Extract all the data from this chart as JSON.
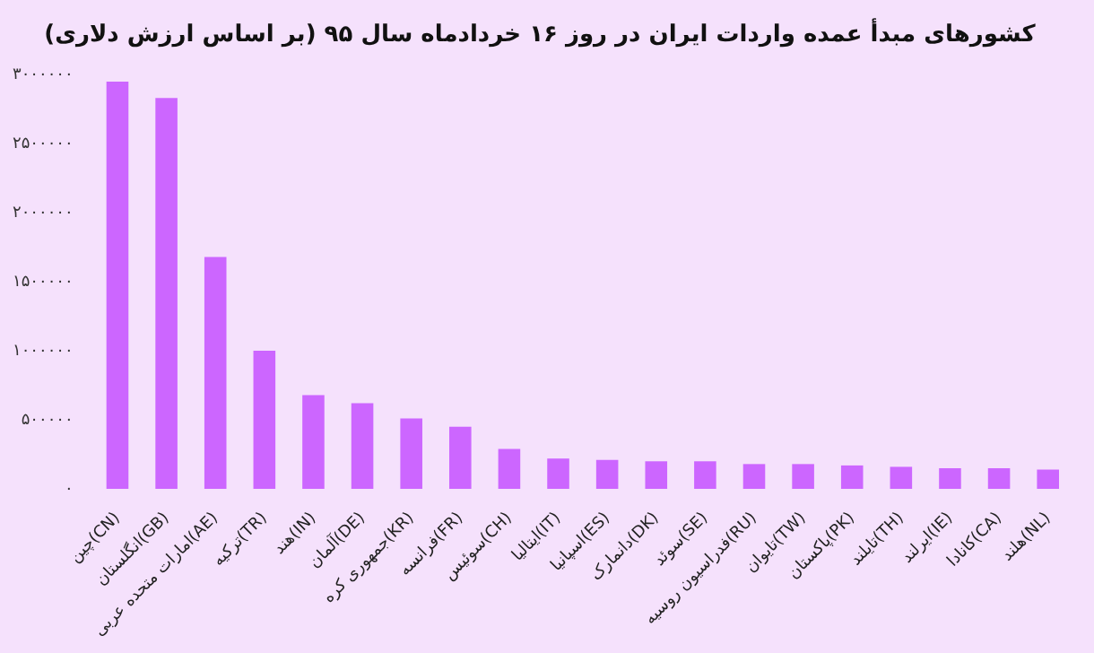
{
  "chart_data": {
    "type": "bar",
    "title": "کشورهای مبدأ عمده واردات ایران در روز ۱۶ خردادماه سال ۹۵ (بر اساس ارزش دلاری)",
    "categories": [
      "چین(CN)",
      "انگلستان(GB)",
      "امارات متحده عربی(AE)",
      "ترکیه(TR)",
      "هند(IN)",
      "آلمان(DE)",
      "جمهوری کره(KR)",
      "فرانسه(FR)",
      "سوئیس(CH)",
      "ایتالیا(IT)",
      "اسپانیا(ES)",
      "دانمارک(DK)",
      "سوئد(SE)",
      "فدراسیون روسیه(RU)",
      "تایوان(TW)",
      "پاکستان(PK)",
      "تایلند(TH)",
      "ایرلند(IE)",
      "کانادا(CA)",
      "هلند(NL)"
    ],
    "values": [
      2950000,
      2830000,
      1680000,
      1000000,
      680000,
      620000,
      510000,
      450000,
      290000,
      220000,
      210000,
      200000,
      200000,
      180000,
      180000,
      170000,
      160000,
      150000,
      150000,
      140000
    ],
    "color": "#cc66ff",
    "ylim": [
      0,
      3000000
    ],
    "yticks": [
      {
        "value": 0,
        "label": "۰"
      },
      {
        "value": 500000,
        "label": "۵۰۰۰۰۰"
      },
      {
        "value": 1000000,
        "label": "۱۰۰۰۰۰۰"
      },
      {
        "value": 1500000,
        "label": "۱۵۰۰۰۰۰"
      },
      {
        "value": 2000000,
        "label": "۲۰۰۰۰۰۰"
      },
      {
        "value": 2500000,
        "label": "۲۵۰۰۰۰۰"
      },
      {
        "value": 3000000,
        "label": "۳۰۰۰۰۰۰"
      }
    ],
    "grid": false
  }
}
